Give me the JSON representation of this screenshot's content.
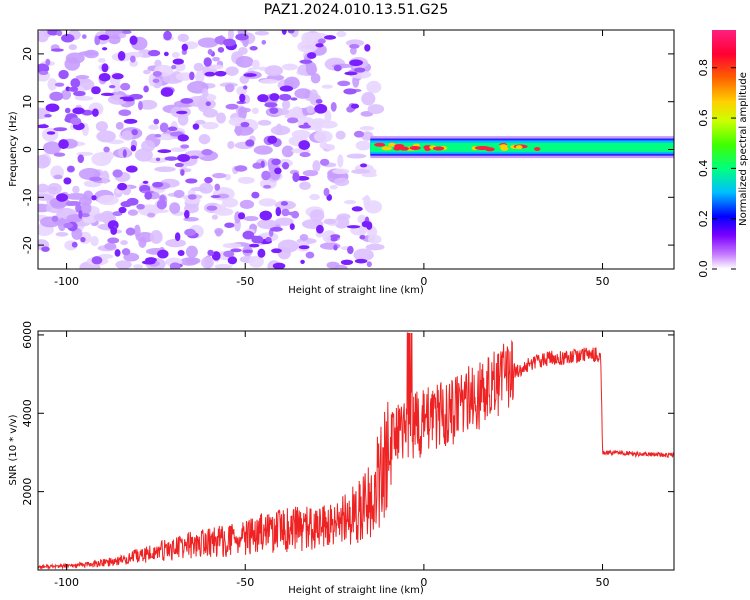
{
  "title": "PAZ1.2024.010.13.51.G25",
  "chart_data": [
    {
      "type": "heatmap",
      "title": "PAZ1.2024.010.13.51.G25",
      "xlabel": "Height of straight line (km)",
      "ylabel": "Frequency (Hz)",
      "xlim": [
        -108,
        70
      ],
      "ylim": [
        -25,
        25
      ],
      "xticks": [
        -100,
        -50,
        0,
        50
      ],
      "yticks": [
        -20,
        -10,
        0,
        10,
        20
      ],
      "colorbar": {
        "label": "Normalized spectral amplitude",
        "range": [
          0,
          0.95
        ],
        "ticks": [
          0.0,
          0.2,
          0.4,
          0.6,
          0.8
        ],
        "colormap": [
          "#ffffff",
          "#c77dff",
          "#7b00ff",
          "#0000ff",
          "#00bfff",
          "#00ff7f",
          "#40ff00",
          "#ccff00",
          "#ffd000",
          "#ff6000",
          "#ff0033",
          "#ff2080"
        ]
      },
      "regions": [
        {
          "x_range": [
            -108,
            -15
          ],
          "y_range": [
            -25,
            25
          ],
          "description_value": "broadband noise",
          "amplitude": 0.15
        },
        {
          "x_range": [
            -15,
            70
          ],
          "y_range": [
            -1,
            2
          ],
          "center_frequency": 0.5,
          "amplitude": 0.6,
          "peak_amplitude": 0.95
        }
      ]
    },
    {
      "type": "line",
      "xlabel": "Height of straight line (km)",
      "ylabel": "SNR (10 * v/v)",
      "xlim": [
        -108,
        70
      ],
      "ylim": [
        0,
        6100
      ],
      "xticks": [
        -100,
        -50,
        0,
        50
      ],
      "yticks": [
        2000,
        4000,
        6000
      ],
      "color": "#ee2222",
      "series": [
        {
          "x": [
            -108,
            -100,
            -92,
            -85,
            -80,
            -75,
            -70,
            -65,
            -60,
            -55,
            -50,
            -45,
            -40,
            -35,
            -30,
            -25,
            -20,
            -15,
            -12,
            -10,
            -8,
            -5,
            -3,
            0,
            5,
            10,
            15,
            20,
            25,
            30,
            35,
            40,
            45,
            49.5,
            50,
            55,
            60,
            65,
            70
          ],
          "values": [
            80,
            100,
            150,
            250,
            350,
            450,
            550,
            650,
            700,
            750,
            800,
            950,
            1000,
            1050,
            1050,
            1100,
            1400,
            1800,
            2400,
            2900,
            3300,
            3500,
            3700,
            3800,
            3900,
            4200,
            4450,
            4750,
            5050,
            5300,
            5400,
            5450,
            5500,
            5500,
            3000,
            3000,
            2950,
            2950,
            2920
          ]
        }
      ]
    }
  ]
}
